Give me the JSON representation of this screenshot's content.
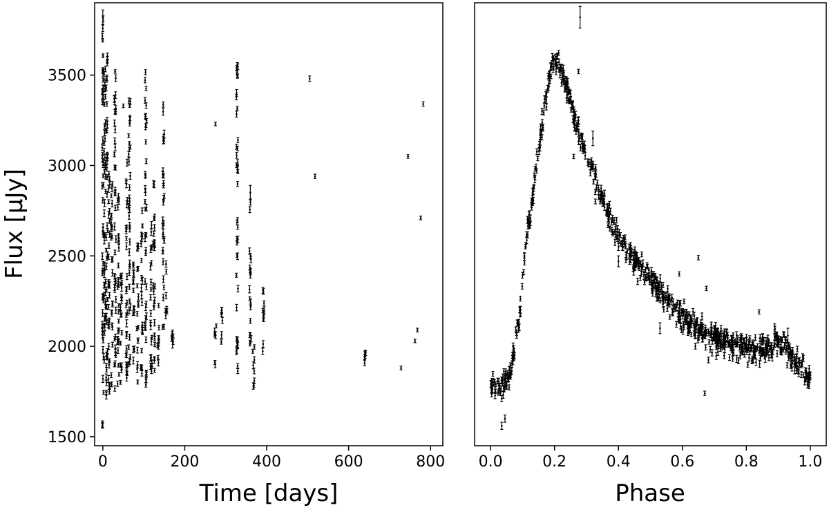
{
  "chart_data": [
    {
      "type": "scatter",
      "panel": "left",
      "xlabel": "Time [days]",
      "ylabel": "Flux [μJy]",
      "xlim": [
        -20,
        830
      ],
      "ylim": [
        1450,
        3900
      ],
      "xticks": [
        0,
        200,
        400,
        600,
        800
      ],
      "yticks": [
        1500,
        2000,
        2500,
        3000,
        3500
      ],
      "xtick_labels": [
        "0",
        "200",
        "400",
        "600",
        "800"
      ],
      "ytick_labels": [
        "1500",
        "2000",
        "2500",
        "3000",
        "3500"
      ],
      "error_bars": true,
      "marker_color": "#000000",
      "grid": false,
      "clusters": [
        {
          "x": 0,
          "y_range": [
            1550,
            3820
          ]
        },
        {
          "x": 5,
          "y_range": [
            1700,
            3550
          ]
        },
        {
          "x": 10,
          "y_range": [
            1720,
            3620
          ]
        },
        {
          "x": 15,
          "y_range": [
            1740,
            3000
          ]
        },
        {
          "x": 22,
          "y_range": [
            1760,
            2900
          ]
        },
        {
          "x": 30,
          "y_range": [
            1750,
            3500
          ]
        },
        {
          "x": 38,
          "y_range": [
            1780,
            2900
          ]
        },
        {
          "x": 45,
          "y_range": [
            1800,
            2600
          ]
        },
        {
          "x": 58,
          "y_range": [
            1800,
            3100
          ]
        },
        {
          "x": 65,
          "y_range": [
            1820,
            3400
          ]
        },
        {
          "x": 75,
          "y_range": [
            1850,
            2500
          ]
        },
        {
          "x": 85,
          "y_range": [
            1800,
            2600
          ]
        },
        {
          "x": 95,
          "y_range": [
            1800,
            2800
          ]
        },
        {
          "x": 105,
          "y_range": [
            1780,
            3570
          ]
        },
        {
          "x": 118,
          "y_range": [
            1760,
            2700
          ]
        },
        {
          "x": 125,
          "y_range": [
            1800,
            2900
          ]
        },
        {
          "x": 135,
          "y_range": [
            1900,
            2300
          ]
        },
        {
          "x": 148,
          "y_range": [
            2100,
            3400
          ]
        },
        {
          "x": 155,
          "y_range": [
            2150,
            2500
          ]
        },
        {
          "x": 170,
          "y_range": [
            1990,
            2080
          ]
        },
        {
          "x": 275,
          "y_range": [
            1860,
            2150
          ]
        },
        {
          "x": 290,
          "y_range": [
            2000,
            2200
          ]
        },
        {
          "x": 328,
          "y_range": [
            1780,
            3610
          ]
        },
        {
          "x": 360,
          "y_range": [
            2000,
            2850
          ]
        },
        {
          "x": 368,
          "y_range": [
            1680,
            2020
          ]
        },
        {
          "x": 392,
          "y_range": [
            1950,
            2390
          ]
        },
        {
          "x": 640,
          "y_range": [
            1900,
            1970
          ]
        }
      ],
      "points": [
        {
          "x": 0,
          "y": 3820,
          "err": 40
        },
        {
          "x": 0,
          "y": 3520,
          "err": 10
        },
        {
          "x": 30,
          "y": 3520,
          "err": 10
        },
        {
          "x": 50,
          "y": 3330,
          "err": 10
        },
        {
          "x": 275,
          "y": 3230,
          "err": 10
        },
        {
          "x": 170,
          "y": 2040,
          "err": 50
        },
        {
          "x": 360,
          "y": 2850,
          "err": 40
        },
        {
          "x": 505,
          "y": 3480,
          "err": 15
        },
        {
          "x": 518,
          "y": 2940,
          "err": 12
        },
        {
          "x": 728,
          "y": 1880,
          "err": 10
        },
        {
          "x": 745,
          "y": 3050,
          "err": 10
        },
        {
          "x": 762,
          "y": 2030,
          "err": 10
        },
        {
          "x": 768,
          "y": 2090,
          "err": 10
        },
        {
          "x": 776,
          "y": 2710,
          "err": 10
        },
        {
          "x": 782,
          "y": 3340,
          "err": 12
        }
      ]
    },
    {
      "type": "scatter",
      "panel": "right",
      "xlabel": "Phase",
      "ylabel": "",
      "xlim": [
        -0.05,
        1.05
      ],
      "ylim": [
        1450,
        3900
      ],
      "xticks": [
        0.0,
        0.2,
        0.4,
        0.6,
        0.8,
        1.0
      ],
      "xtick_labels": [
        "0.0",
        "0.2",
        "0.4",
        "0.6",
        "0.8",
        "1.0"
      ],
      "yticks_shared": true,
      "error_bars": true,
      "marker_color": "#000000",
      "grid": false,
      "phase_curve": [
        {
          "x": 0.0,
          "y": 1800
        },
        {
          "x": 0.03,
          "y": 1760
        },
        {
          "x": 0.06,
          "y": 1850
        },
        {
          "x": 0.09,
          "y": 2150
        },
        {
          "x": 0.11,
          "y": 2550
        },
        {
          "x": 0.13,
          "y": 2800
        },
        {
          "x": 0.16,
          "y": 3200
        },
        {
          "x": 0.19,
          "y": 3560
        },
        {
          "x": 0.21,
          "y": 3580
        },
        {
          "x": 0.24,
          "y": 3420
        },
        {
          "x": 0.28,
          "y": 3150
        },
        {
          "x": 0.32,
          "y": 2950
        },
        {
          "x": 0.36,
          "y": 2750
        },
        {
          "x": 0.4,
          "y": 2600
        },
        {
          "x": 0.45,
          "y": 2480
        },
        {
          "x": 0.5,
          "y": 2370
        },
        {
          "x": 0.55,
          "y": 2260
        },
        {
          "x": 0.6,
          "y": 2160
        },
        {
          "x": 0.65,
          "y": 2090
        },
        {
          "x": 0.7,
          "y": 2050
        },
        {
          "x": 0.75,
          "y": 2020
        },
        {
          "x": 0.8,
          "y": 1990
        },
        {
          "x": 0.85,
          "y": 1990
        },
        {
          "x": 0.9,
          "y": 2010
        },
        {
          "x": 0.93,
          "y": 1980
        },
        {
          "x": 0.96,
          "y": 1900
        },
        {
          "x": 1.0,
          "y": 1820
        }
      ],
      "outliers": [
        {
          "x": 0.28,
          "y": 3820,
          "err": 60
        },
        {
          "x": 0.275,
          "y": 3520,
          "err": 12
        },
        {
          "x": 0.32,
          "y": 3150,
          "err": 40
        },
        {
          "x": 0.26,
          "y": 3050,
          "err": 12
        },
        {
          "x": 0.4,
          "y": 2470,
          "err": 30
        },
        {
          "x": 0.035,
          "y": 1560,
          "err": 20
        },
        {
          "x": 0.045,
          "y": 1600,
          "err": 20
        },
        {
          "x": 0.53,
          "y": 2100,
          "err": 30
        },
        {
          "x": 0.59,
          "y": 2400,
          "err": 12
        },
        {
          "x": 0.65,
          "y": 2490,
          "err": 12
        },
        {
          "x": 0.67,
          "y": 1740,
          "err": 12
        },
        {
          "x": 0.675,
          "y": 2320,
          "err": 12
        },
        {
          "x": 0.84,
          "y": 2190,
          "err": 12
        },
        {
          "x": 0.93,
          "y": 2060,
          "err": 40
        }
      ]
    }
  ]
}
